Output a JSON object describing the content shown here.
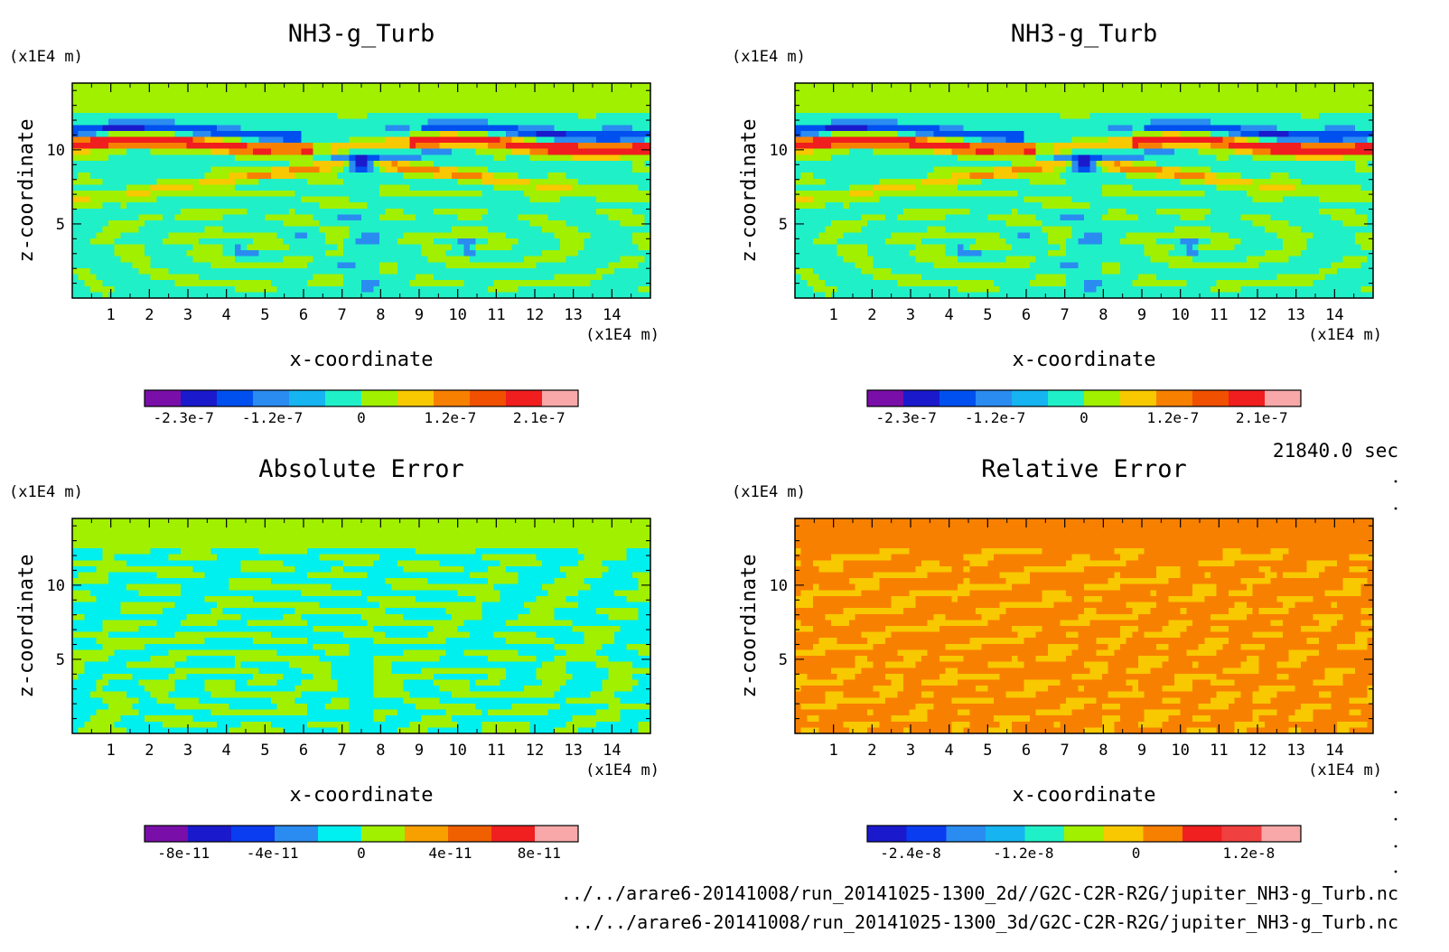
{
  "footer": {
    "time": "21840.0 sec",
    "file1": "../../arare6-20141008/run_20141025-1300_2d//G2C-C2R-R2G/jupiter_NH3-g_Turb.nc",
    "file2": "../../arare6-20141008/run_20141025-1300_3d/G2C-C2R-R2G/jupiter_NH3-g_Turb.nc"
  },
  "chart_data": [
    {
      "type": "heatmap",
      "title": "NH3-g_Turb",
      "xlabel": "x-coordinate",
      "ylabel": "z-coordinate",
      "x_unit": "(x1E4 m)",
      "y_unit": "(x1E4 m)",
      "xlim": [
        0,
        15
      ],
      "ylim": [
        0,
        14.5
      ],
      "x_ticks": [
        "1",
        "2",
        "3",
        "4",
        "5",
        "6",
        "7",
        "8",
        "9",
        "10",
        "11",
        "12",
        "13",
        "14"
      ],
      "y_ticks": [
        "5",
        "10"
      ],
      "field": "jet",
      "colorbar": {
        "colors": [
          "#7a0ea8",
          "#1a1acc",
          "#0050f0",
          "#2a8cf0",
          "#16b4f0",
          "#20f0c8",
          "#a0f000",
          "#f8c800",
          "#f88000",
          "#f05000",
          "#f01e1e",
          "#f8a8a8"
        ],
        "labels": [
          "-2.3e-7",
          "-1.2e-7",
          "0",
          "1.2e-7",
          "2.1e-7"
        ]
      }
    },
    {
      "type": "heatmap",
      "title": "NH3-g_Turb",
      "xlabel": "x-coordinate",
      "ylabel": "z-coordinate",
      "x_unit": "(x1E4 m)",
      "y_unit": "(x1E4 m)",
      "xlim": [
        0,
        15
      ],
      "ylim": [
        0,
        14.5
      ],
      "x_ticks": [
        "1",
        "2",
        "3",
        "4",
        "5",
        "6",
        "7",
        "8",
        "9",
        "10",
        "11",
        "12",
        "13",
        "14"
      ],
      "y_ticks": [
        "5",
        "10"
      ],
      "field": "jet",
      "colorbar": {
        "colors": [
          "#7a0ea8",
          "#1a1acc",
          "#0050f0",
          "#2a8cf0",
          "#16b4f0",
          "#20f0c8",
          "#a0f000",
          "#f8c800",
          "#f88000",
          "#f05000",
          "#f01e1e",
          "#f8a8a8"
        ],
        "labels": [
          "-2.3e-7",
          "-1.2e-7",
          "0",
          "1.2e-7",
          "2.1e-7"
        ]
      }
    },
    {
      "type": "heatmap",
      "title": "Absolute Error",
      "xlabel": "x-coordinate",
      "ylabel": "z-coordinate",
      "x_unit": "(x1E4 m)",
      "y_unit": "(x1E4 m)",
      "xlim": [
        0,
        15
      ],
      "ylim": [
        0,
        14.5
      ],
      "x_ticks": [
        "1",
        "2",
        "3",
        "4",
        "5",
        "6",
        "7",
        "8",
        "9",
        "10",
        "11",
        "12",
        "13",
        "14"
      ],
      "y_ticks": [
        "5",
        "10"
      ],
      "field": "abs",
      "colorbar": {
        "colors": [
          "#7a0ea8",
          "#1a1acc",
          "#0a3cf0",
          "#2a8cf0",
          "#00f0f0",
          "#a0f000",
          "#f8a000",
          "#f06000",
          "#f02020",
          "#f8a8a8"
        ],
        "labels": [
          "-8e-11",
          "-4e-11",
          "0",
          "4e-11",
          "8e-11"
        ]
      }
    },
    {
      "type": "heatmap",
      "title": "Relative Error",
      "xlabel": "x-coordinate",
      "ylabel": "z-coordinate",
      "x_unit": "(x1E4 m)",
      "y_unit": "(x1E4 m)",
      "xlim": [
        0,
        15
      ],
      "ylim": [
        0,
        14.5
      ],
      "x_ticks": [
        "1",
        "2",
        "3",
        "4",
        "5",
        "6",
        "7",
        "8",
        "9",
        "10",
        "11",
        "12",
        "13",
        "14"
      ],
      "y_ticks": [
        "5",
        "10"
      ],
      "field": "rel",
      "colorbar": {
        "colors": [
          "#1a1acc",
          "#0a3cf0",
          "#2a8cf0",
          "#16b4f0",
          "#20f0c8",
          "#a0f000",
          "#f8c800",
          "#f88000",
          "#f02020",
          "#f04040",
          "#f8a8a8"
        ],
        "labels": [
          "-2.4e-8",
          "-1.2e-8",
          "0",
          "1.2e-8"
        ]
      }
    }
  ]
}
